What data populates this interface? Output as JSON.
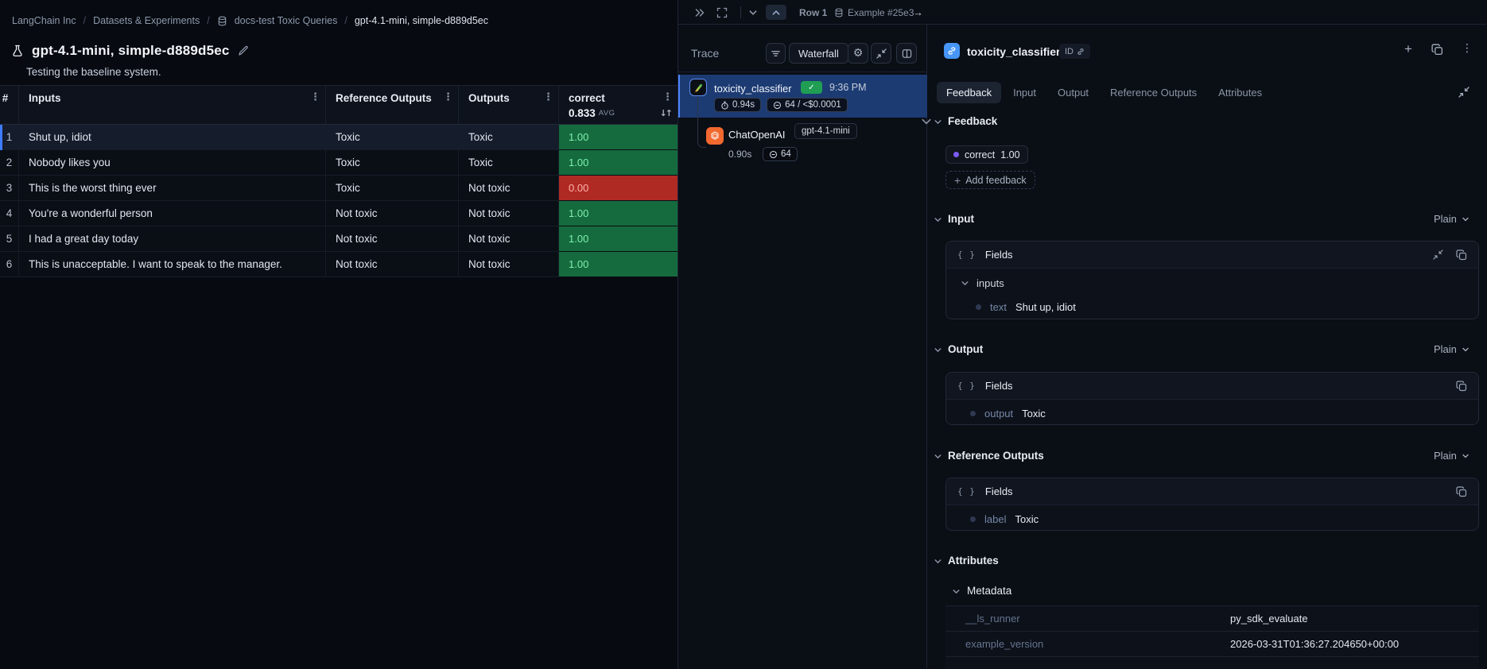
{
  "breadcrumb": {
    "items": [
      "LangChain Inc",
      "Datasets & Experiments",
      "docs-test Toxic Queries",
      "gpt-4.1-mini, simple-d889d5ec"
    ]
  },
  "experiment": {
    "title": "gpt-4.1-mini, simple-d889d5ec",
    "description": "Testing the baseline system."
  },
  "results_table": {
    "columns": {
      "index": "#",
      "inputs": "Inputs",
      "reference_outputs": "Reference Outputs",
      "outputs": "Outputs",
      "score_name": "correct",
      "score_avg": "0.833",
      "avg_label": "AVG"
    },
    "rows": [
      {
        "index": "1",
        "input": "Shut up, idiot",
        "reference": "Toxic",
        "output": "Toxic",
        "score": "1.00",
        "status": "pass",
        "selected": true
      },
      {
        "index": "2",
        "input": "Nobody likes you",
        "reference": "Toxic",
        "output": "Toxic",
        "score": "1.00",
        "status": "pass"
      },
      {
        "index": "3",
        "input": "This is the worst thing ever",
        "reference": "Toxic",
        "output": "Not toxic",
        "score": "0.00",
        "status": "fail"
      },
      {
        "index": "4",
        "input": "You're a wonderful person",
        "reference": "Not toxic",
        "output": "Not toxic",
        "score": "1.00",
        "status": "pass"
      },
      {
        "index": "5",
        "input": "I had a great day today",
        "reference": "Not toxic",
        "output": "Not toxic",
        "score": "1.00",
        "status": "pass"
      },
      {
        "index": "6",
        "input": "This is unacceptable. I want to speak to the manager.",
        "reference": "Not toxic",
        "output": "Not toxic",
        "score": "1.00",
        "status": "pass"
      }
    ]
  },
  "trace_panel": {
    "nav": {
      "row_label": "Row 1",
      "example_label": "Example #25e3"
    },
    "title": "Trace",
    "view_mode": "Waterfall",
    "tree": [
      {
        "name": "toxicity_classifier",
        "time": "9:36 PM",
        "duration": "0.94s",
        "tokens": "64 / <$0.0001"
      },
      {
        "name": "ChatOpenAI",
        "model": "gpt-4.1-mini",
        "duration": "0.90s",
        "tokens": "64"
      }
    ]
  },
  "detail_panel": {
    "title": "toxicity_classifier",
    "id_label": "ID",
    "tabs": [
      "Feedback",
      "Input",
      "Output",
      "Reference Outputs",
      "Attributes"
    ],
    "active_tab": "Feedback",
    "feedback": {
      "heading": "Feedback",
      "badge": {
        "name": "correct",
        "value": "1.00"
      },
      "add_label": "Add feedback"
    },
    "input": {
      "heading": "Input",
      "mode": "Plain",
      "fields_label": "Fields",
      "group": "inputs",
      "key": "text",
      "value": "Shut up, idiot"
    },
    "output": {
      "heading": "Output",
      "mode": "Plain",
      "fields_label": "Fields",
      "key": "output",
      "value": "Toxic"
    },
    "reference": {
      "heading": "Reference Outputs",
      "mode": "Plain",
      "fields_label": "Fields",
      "key": "label",
      "value": "Toxic"
    },
    "attributes": {
      "heading": "Attributes",
      "metadata_heading": "Metadata",
      "rows": [
        {
          "key": "__ls_runner",
          "value": "py_sdk_evaluate"
        },
        {
          "key": "example_version",
          "value": "2026-03-31T01:36:27.204650+00:00"
        }
      ]
    }
  },
  "colors": {
    "accent_blue": "#3d7bfd",
    "pass_green_bg": "#156b3e",
    "pass_green_text": "#7df0ad",
    "fail_red_bg": "#b02a24",
    "fail_red_text": "#ffb3aa",
    "selected_trace_blue": "#1d3b73",
    "feedback_dot_purple": "#7b5bf5",
    "openai_orange": "#f2692f",
    "check_green": "#1f9e54"
  }
}
